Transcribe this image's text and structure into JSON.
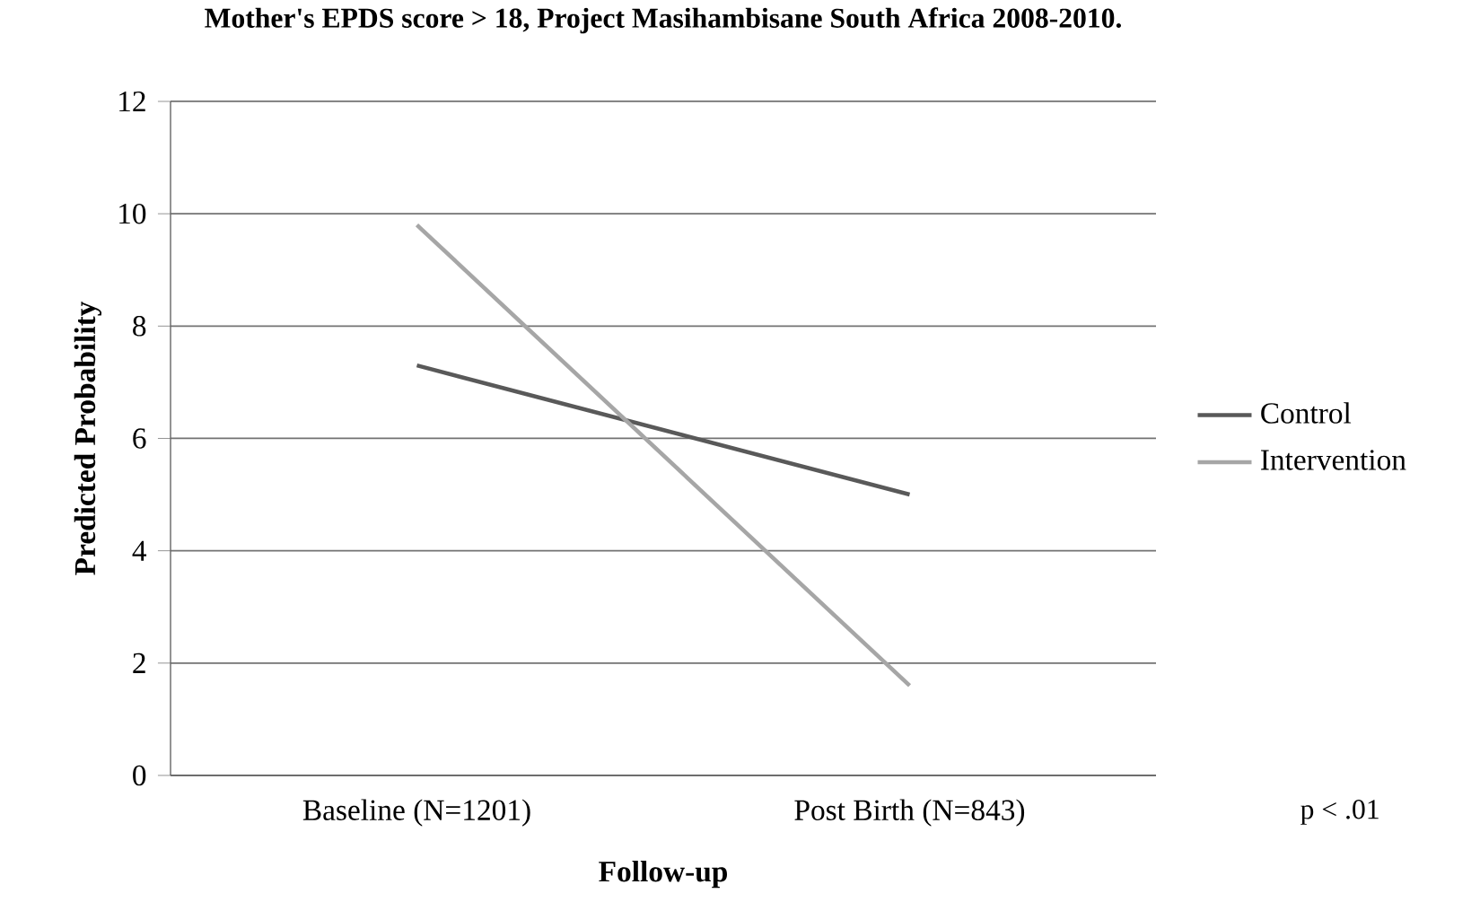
{
  "chart_data": {
    "type": "line",
    "title": "Mother's EPDS score > 18, Project Masihambisane  South Africa 2008-2010.",
    "xlabel": "Follow-up",
    "ylabel": "Predicted Probability",
    "categories": [
      "Baseline (N=1201)",
      "Post Birth (N=843)"
    ],
    "series": [
      {
        "name": "Control",
        "color": "#595959",
        "values": [
          7.3,
          5.0
        ]
      },
      {
        "name": "Intervention",
        "color": "#a6a6a6",
        "values": [
          9.8,
          1.6
        ]
      }
    ],
    "ylim": [
      0,
      12
    ],
    "yticks": [
      0,
      2,
      4,
      6,
      8,
      10,
      12
    ],
    "grid": "y",
    "legend": "right",
    "annotations": [
      "p < .01"
    ]
  }
}
